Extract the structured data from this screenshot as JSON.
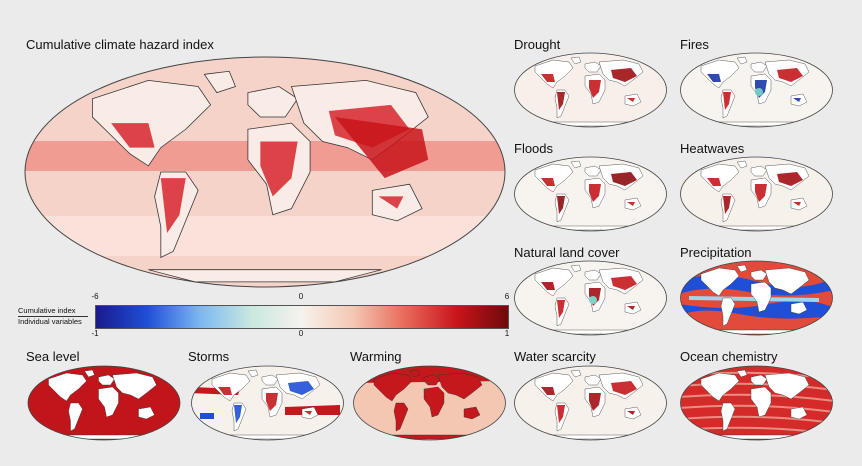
{
  "main_map": {
    "title": "Cumulative climate hazard index"
  },
  "colorbar": {
    "colors": [
      "#1a1a8c",
      "#1f4fd6",
      "#7ab6f0",
      "#c8e8e0",
      "#f6f2ec",
      "#f4c7b3",
      "#e86a5a",
      "#c8151c",
      "#6e0a0a"
    ],
    "top_label": "Cumulative index",
    "bottom_label": "Individual variables",
    "top_ticks": [
      "-6",
      "0",
      "6"
    ],
    "bottom_ticks": [
      "-1",
      "0",
      "1"
    ]
  },
  "panels": [
    {
      "id": "drought",
      "title": "Drought",
      "base": "#f7efe9",
      "accent": "#c4181d",
      "accent2": "#9e0f12",
      "extra": ""
    },
    {
      "id": "fires",
      "title": "Fires",
      "base": "#f7f3ef",
      "accent": "#1a36a8",
      "accent2": "#c4181d",
      "extra": "#6fc9c4"
    },
    {
      "id": "floods",
      "title": "Floods",
      "base": "#f7f3ef",
      "accent": "#c4181d",
      "accent2": "#8d0d10",
      "extra": ""
    },
    {
      "id": "heatwaves",
      "title": "Heatwaves",
      "base": "#f7f1ec",
      "accent": "#c4181d",
      "accent2": "#a31015",
      "extra": ""
    },
    {
      "id": "landcover",
      "title": "Natural land cover",
      "base": "#f7f3ef",
      "accent": "#a31015",
      "accent2": "#c4181d",
      "extra": "#7fd3c6"
    },
    {
      "id": "precipitation",
      "title": "Precipitation",
      "base": "#e24a3c",
      "accent": "#1f4fd6",
      "accent2": "#ffffff",
      "extra": "#9fd4ea"
    },
    {
      "id": "sealevel",
      "title": "Sea level",
      "base": "#c0161b",
      "accent": "#ffffff",
      "accent2": "#9c1014",
      "extra": ""
    },
    {
      "id": "storms",
      "title": "Storms",
      "base": "#f7f1ec",
      "accent": "#c4181d",
      "accent2": "#1f4fd6",
      "extra": ""
    },
    {
      "id": "warming",
      "title": "Warming",
      "base": "#f4c7b3",
      "accent": "#c4181d",
      "accent2": "#a31015",
      "extra": ""
    },
    {
      "id": "water",
      "title": "Water scarcity",
      "base": "#f7f1ec",
      "accent": "#a31015",
      "accent2": "#c4181d",
      "extra": ""
    },
    {
      "id": "ocean",
      "title": "Ocean chemistry",
      "base": "#d42b2a",
      "accent": "#f3b8a6",
      "accent2": "#ffffff",
      "extra": ""
    }
  ]
}
